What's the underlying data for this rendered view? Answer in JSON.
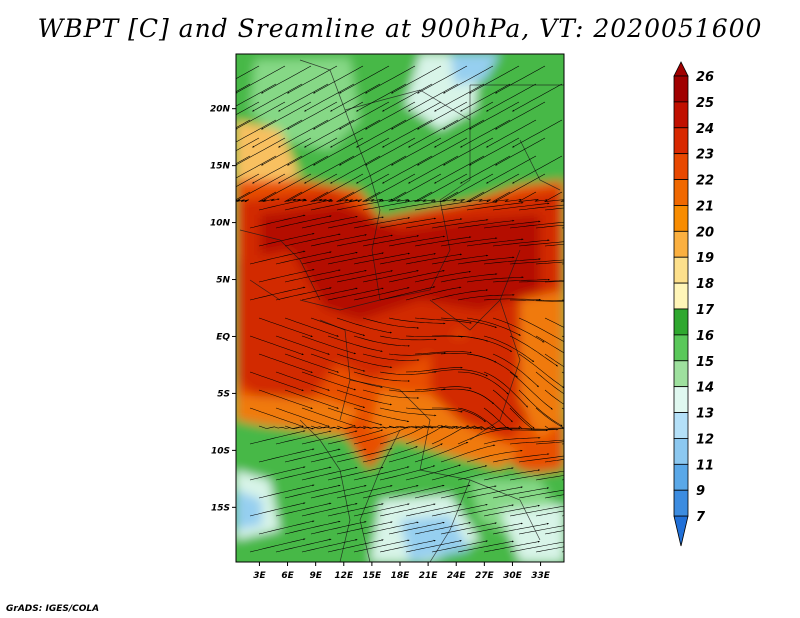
{
  "title": "WBPT [C] and Sreamline at 900hPa, VT: 2020051600",
  "credit": "GrADS: IGES/COLA",
  "map": {
    "lat_ticks": [
      "20N",
      "15N",
      "10N",
      "5N",
      "EQ",
      "5S",
      "10S",
      "15S"
    ],
    "lat_values": [
      20,
      15,
      10,
      5,
      0,
      -5,
      -10,
      -15
    ],
    "lon_ticks": [
      "3E",
      "6E",
      "9E",
      "12E",
      "15E",
      "18E",
      "21E",
      "24E",
      "27E",
      "30E",
      "33E"
    ],
    "lon_values": [
      3,
      6,
      9,
      12,
      15,
      18,
      21,
      24,
      27,
      30,
      33
    ],
    "lat_range": [
      -19.8,
      24.8
    ],
    "lon_range": [
      0.5,
      35.5
    ]
  },
  "colorbar": {
    "labels": [
      "26",
      "25",
      "24",
      "23",
      "22",
      "21",
      "20",
      "19",
      "18",
      "17",
      "16",
      "15",
      "14",
      "13",
      "12",
      "11",
      "9",
      "7"
    ],
    "colors": [
      "#a00000",
      "#c01000",
      "#d82800",
      "#e84800",
      "#f06800",
      "#f88c00",
      "#fbb040",
      "#fde08c",
      "#fff5b8",
      "#2fa82f",
      "#5ac85a",
      "#9ee09e",
      "#e0f8f0",
      "#b4e0f8",
      "#8cc8f0",
      "#5aa8e8",
      "#3c8ce0",
      "#2070d8"
    ]
  },
  "colors": {
    "very_hot": "#b41000",
    "hot": "#d22c00",
    "warm": "#e85000",
    "mild": "#f07a10",
    "cool_yellow": "#f8c060",
    "green": "#46b846",
    "light_green": "#86d886",
    "pale": "#d8f4e8",
    "blue": "#96cff0"
  }
}
